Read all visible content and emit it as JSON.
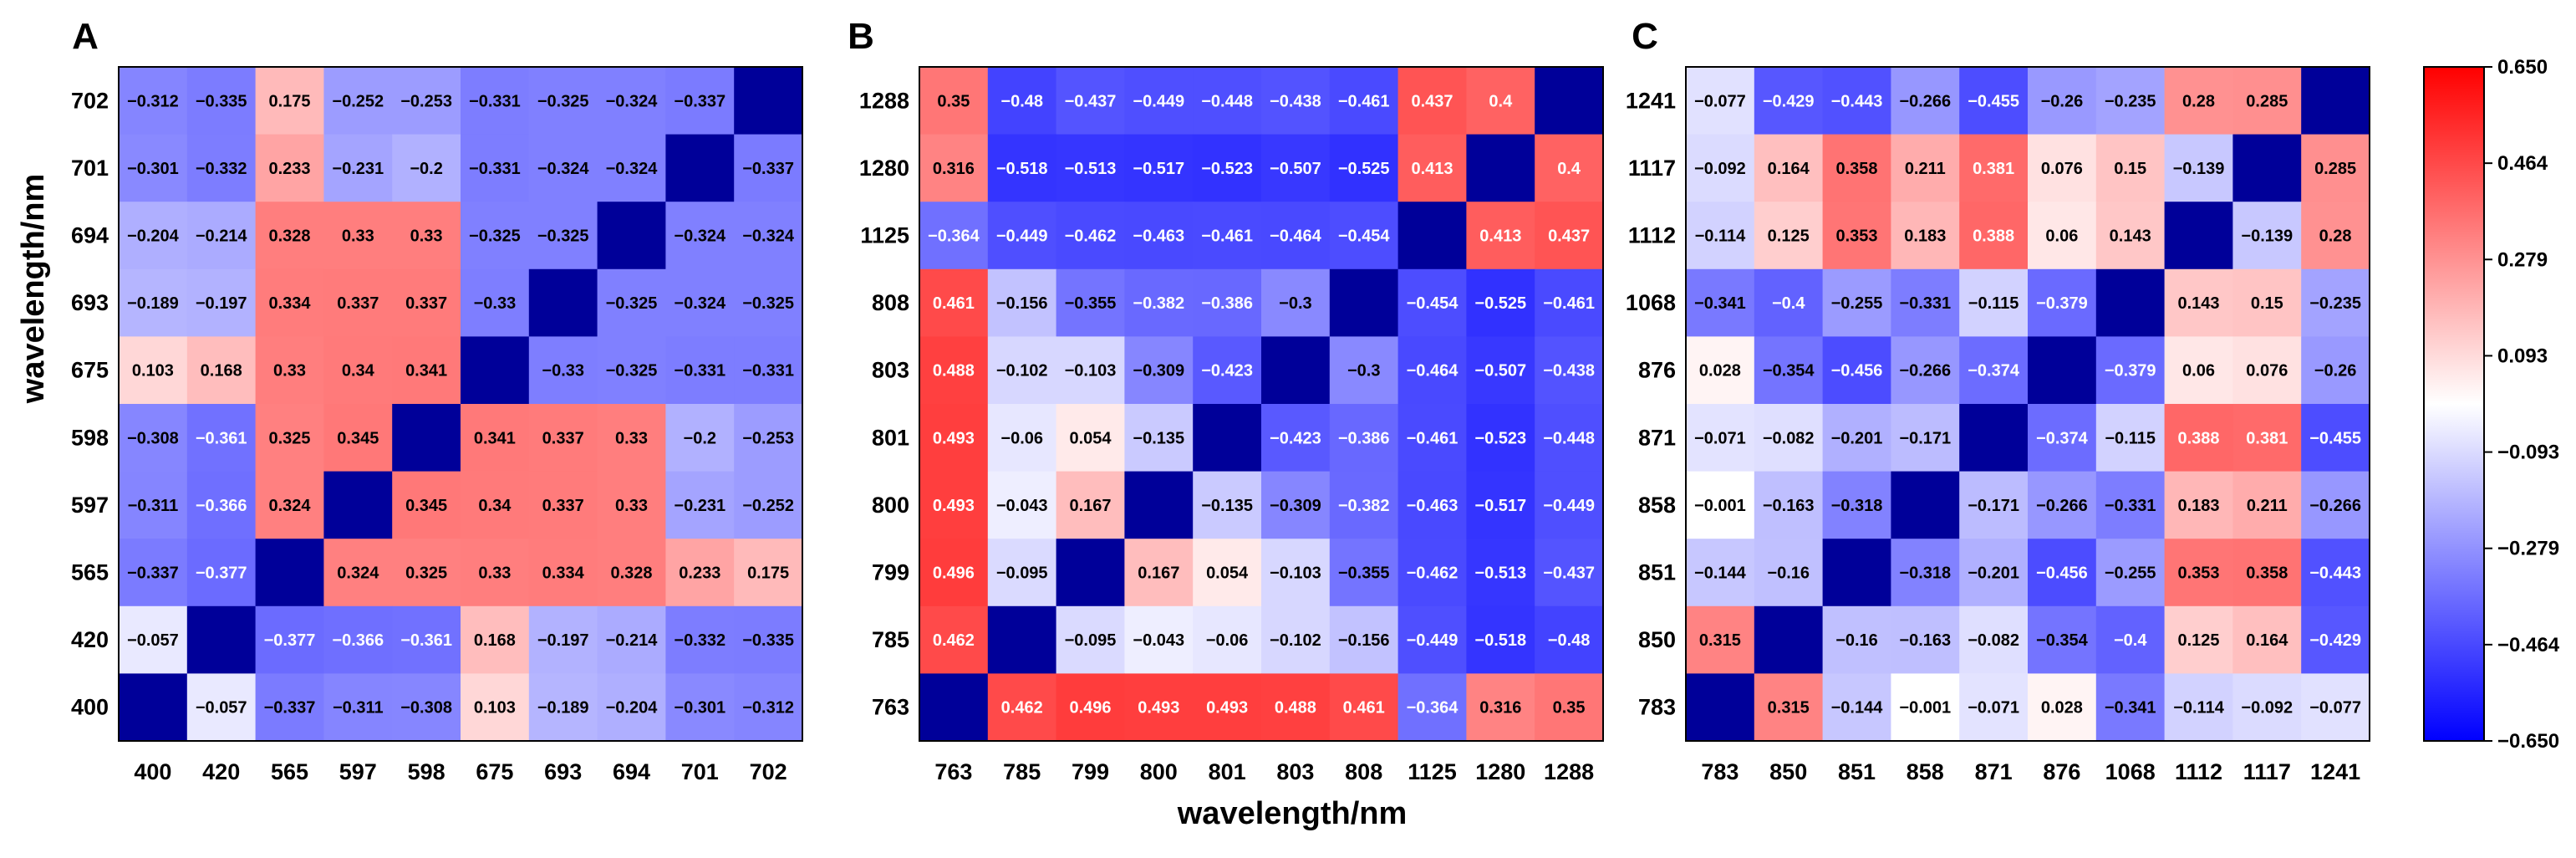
{
  "colors": {
    "diagonal": "#000099",
    "neg": "#0000ff",
    "mid": "#ffffff",
    "pos": "#ff0000"
  },
  "axis_titles": {
    "y": "wavelength/nm",
    "x": "wavelength/nm"
  },
  "colorbar": {
    "ticks": [
      "0.650",
      "0.464",
      "0.279",
      "0.093",
      "−0.093",
      "−0.279",
      "−0.464",
      "−0.650"
    ],
    "range": [
      -0.65,
      0.65
    ]
  },
  "chart_data": [
    {
      "type": "heatmap",
      "title": "A",
      "xlabel": "",
      "ylabel": "wavelength/nm",
      "x_categories": [
        "400",
        "420",
        "565",
        "597",
        "598",
        "675",
        "693",
        "694",
        "701",
        "702"
      ],
      "y_categories_top_to_bottom": [
        "702",
        "701",
        "694",
        "693",
        "675",
        "598",
        "597",
        "565",
        "420",
        "400"
      ],
      "matrix": [
        [
          "-0.312",
          "-0.335",
          "0.175",
          "-0.252",
          "-0.253",
          "-0.331",
          "-0.325",
          "-0.324",
          "-0.337",
          null
        ],
        [
          "-0.301",
          "-0.332",
          "0.233",
          "-0.231",
          "-0.2",
          "-0.331",
          "-0.324",
          "-0.324",
          null,
          "-0.337"
        ],
        [
          "-0.204",
          "-0.214",
          "0.328",
          "0.33",
          "0.33",
          "-0.325",
          "-0.325",
          null,
          "-0.324",
          "-0.324"
        ],
        [
          "-0.189",
          "-0.197",
          "0.334",
          "0.337",
          "0.337",
          "-0.33",
          null,
          "-0.325",
          "-0.324",
          "-0.325"
        ],
        [
          "0.103",
          "0.168",
          "0.33",
          "0.34",
          "0.341",
          null,
          "-0.33",
          "-0.325",
          "-0.331",
          "-0.331"
        ],
        [
          "-0.308",
          "-0.361",
          "0.325",
          "0.345",
          null,
          "0.341",
          "0.337",
          "0.33",
          "-0.2",
          "-0.253"
        ],
        [
          "-0.311",
          "-0.366",
          "0.324",
          null,
          "0.345",
          "0.34",
          "0.337",
          "0.33",
          "-0.231",
          "-0.252"
        ],
        [
          "-0.337",
          "-0.377",
          null,
          "0.324",
          "0.325",
          "0.33",
          "0.334",
          "0.328",
          "0.233",
          "0.175"
        ],
        [
          "-0.057",
          null,
          "-0.377",
          "-0.366",
          "-0.361",
          "0.168",
          "-0.197",
          "-0.214",
          "-0.332",
          "-0.335"
        ],
        [
          null,
          "-0.057",
          "-0.337",
          "-0.311",
          "-0.308",
          "0.103",
          "-0.189",
          "-0.204",
          "-0.301",
          "-0.312"
        ]
      ]
    },
    {
      "type": "heatmap",
      "title": "B",
      "xlabel": "wavelength/nm",
      "ylabel": "",
      "x_categories": [
        "763",
        "785",
        "799",
        "800",
        "801",
        "803",
        "808",
        "1125",
        "1280",
        "1288"
      ],
      "y_categories_top_to_bottom": [
        "1288",
        "1280",
        "1125",
        "808",
        "803",
        "801",
        "800",
        "799",
        "785",
        "763"
      ],
      "matrix": [
        [
          "0.35",
          "-0.48",
          "-0.437",
          "-0.449",
          "-0.448",
          "-0.438",
          "-0.461",
          "0.437",
          "0.4",
          null
        ],
        [
          "0.316",
          "-0.518",
          "-0.513",
          "-0.517",
          "-0.523",
          "-0.507",
          "-0.525",
          "0.413",
          null,
          "0.4"
        ],
        [
          "-0.364",
          "-0.449",
          "-0.462",
          "-0.463",
          "-0.461",
          "-0.464",
          "-0.454",
          null,
          "0.413",
          "0.437"
        ],
        [
          "0.461",
          "-0.156",
          "-0.355",
          "-0.382",
          "-0.386",
          "-0.3",
          null,
          "-0.454",
          "-0.525",
          "-0.461"
        ],
        [
          "0.488",
          "-0.102",
          "-0.103",
          "-0.309",
          "-0.423",
          null,
          "-0.3",
          "-0.464",
          "-0.507",
          "-0.438"
        ],
        [
          "0.493",
          "-0.06",
          "0.054",
          "-0.135",
          null,
          "-0.423",
          "-0.386",
          "-0.461",
          "-0.523",
          "-0.448"
        ],
        [
          "0.493",
          "-0.043",
          "0.167",
          null,
          "-0.135",
          "-0.309",
          "-0.382",
          "-0.463",
          "-0.517",
          "-0.449"
        ],
        [
          "0.496",
          "-0.095",
          null,
          "0.167",
          "0.054",
          "-0.103",
          "-0.355",
          "-0.462",
          "-0.513",
          "-0.437"
        ],
        [
          "0.462",
          null,
          "-0.095",
          "-0.043",
          "-0.06",
          "-0.102",
          "-0.156",
          "-0.449",
          "-0.518",
          "-0.48"
        ],
        [
          null,
          "0.462",
          "0.496",
          "0.493",
          "0.493",
          "0.488",
          "0.461",
          "-0.364",
          "0.316",
          "0.35"
        ]
      ]
    },
    {
      "type": "heatmap",
      "title": "C",
      "xlabel": "",
      "ylabel": "",
      "x_categories": [
        "783",
        "850",
        "851",
        "858",
        "871",
        "876",
        "1068",
        "1112",
        "1117",
        "1241"
      ],
      "y_categories_top_to_bottom": [
        "1241",
        "1117",
        "1112",
        "1068",
        "876",
        "871",
        "858",
        "851",
        "850",
        "783"
      ],
      "matrix": [
        [
          "-0.077",
          "-0.429",
          "-0.443",
          "-0.266",
          "-0.455",
          "-0.26",
          "-0.235",
          "0.28",
          "0.285",
          null
        ],
        [
          "-0.092",
          "0.164",
          "0.358",
          "0.211",
          "0.381",
          "0.076",
          "0.15",
          "-0.139",
          null,
          "0.285"
        ],
        [
          "-0.114",
          "0.125",
          "0.353",
          "0.183",
          "0.388",
          "0.06",
          "0.143",
          null,
          "-0.139",
          "0.28"
        ],
        [
          "-0.341",
          "-0.4",
          "-0.255",
          "-0.331",
          "-0.115",
          "-0.379",
          null,
          "0.143",
          "0.15",
          "-0.235"
        ],
        [
          "0.028",
          "-0.354",
          "-0.456",
          "-0.266",
          "-0.374",
          null,
          "-0.379",
          "0.06",
          "0.076",
          "-0.26"
        ],
        [
          "-0.071",
          "-0.082",
          "-0.201",
          "-0.171",
          null,
          "-0.374",
          "-0.115",
          "0.388",
          "0.381",
          "-0.455"
        ],
        [
          "-0.001",
          "-0.163",
          "-0.318",
          null,
          "-0.171",
          "-0.266",
          "-0.331",
          "0.183",
          "0.211",
          "-0.266"
        ],
        [
          "-0.144",
          "-0.16",
          null,
          "-0.318",
          "-0.201",
          "-0.456",
          "-0.255",
          "0.353",
          "0.358",
          "-0.443"
        ],
        [
          "0.315",
          null,
          "-0.16",
          "-0.163",
          "-0.082",
          "-0.354",
          "-0.4",
          "0.125",
          "0.164",
          "-0.429"
        ],
        [
          null,
          "0.315",
          "-0.144",
          "-0.001",
          "-0.071",
          "0.028",
          "-0.341",
          "-0.114",
          "-0.092",
          "-0.077"
        ]
      ]
    }
  ]
}
